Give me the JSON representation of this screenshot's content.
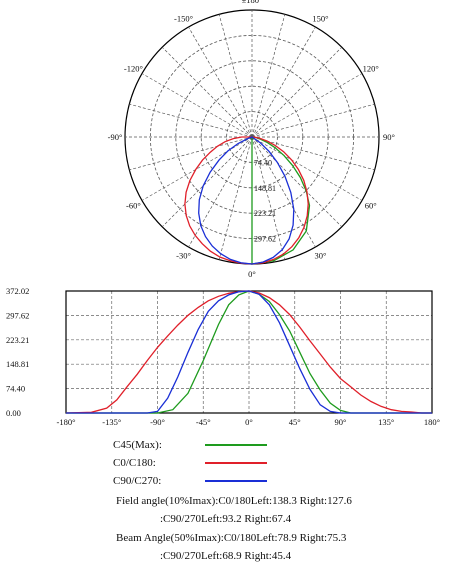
{
  "polar": {
    "angle_labels": [
      {
        "deg": 180,
        "text": "±180°"
      },
      {
        "deg": 150,
        "text": "150°"
      },
      {
        "deg": 120,
        "text": "120°"
      },
      {
        "deg": 90,
        "text": "90°"
      },
      {
        "deg": 60,
        "text": "60°"
      },
      {
        "deg": 30,
        "text": "30°"
      },
      {
        "deg": 0,
        "text": "0°"
      },
      {
        "deg": -30,
        "text": "-30°"
      },
      {
        "deg": -60,
        "text": "-60°"
      },
      {
        "deg": -90,
        "text": "-90°"
      },
      {
        "deg": -120,
        "text": "-120°"
      },
      {
        "deg": -150,
        "text": "-150°"
      }
    ],
    "ring_values": [
      "74.40",
      "148.81",
      "223.21",
      "297.62",
      "372.02"
    ]
  },
  "chart_data": [
    {
      "type": "line",
      "subtype": "polar",
      "r_max": 372.02,
      "r_ticks": [
        74.4,
        148.81,
        223.21,
        297.62,
        372.02
      ],
      "theta_labels_deg": [
        180,
        150,
        120,
        90,
        60,
        30,
        0,
        -30,
        -60,
        -90,
        -120,
        -150
      ],
      "series": [
        {
          "name": "C45(Max):",
          "color": "#1e9b1e",
          "theta": [
            0,
            10,
            20,
            30,
            40,
            45,
            50,
            55,
            60,
            65,
            70,
            75,
            80,
            85,
            90
          ],
          "r": [
            372,
            368,
            352,
            318,
            262,
            225,
            185,
            145,
            108,
            75,
            48,
            28,
            14,
            5,
            0
          ]
        },
        {
          "name": "C0/C180:",
          "color": "#e0202a",
          "theta": [
            -90,
            -85,
            -80,
            -75,
            -70,
            -65,
            -60,
            -55,
            -50,
            -45,
            -40,
            -35,
            -30,
            -25,
            -20,
            -15,
            -10,
            -5,
            0,
            5,
            10,
            15,
            20,
            25,
            30,
            35,
            40,
            45,
            50,
            55,
            60,
            65,
            70,
            75,
            80,
            85,
            90
          ],
          "r": [
            30,
            55,
            80,
            105,
            130,
            160,
            190,
            222,
            252,
            278,
            300,
            318,
            333,
            345,
            356,
            364,
            368,
            371,
            372,
            370,
            364,
            355,
            342,
            325,
            305,
            282,
            256,
            228,
            198,
            166,
            134,
            102,
            72,
            46,
            25,
            10,
            2
          ]
        },
        {
          "name": "C90/C270:",
          "color": "#1a2fd6",
          "theta": [
            -75,
            -70,
            -65,
            -60,
            -55,
            -50,
            -45,
            -40,
            -35,
            -30,
            -25,
            -20,
            -15,
            -10,
            -5,
            0,
            5,
            10,
            15,
            20,
            25,
            30,
            35,
            40,
            45,
            50,
            55,
            60
          ],
          "r": [
            0,
            12,
            45,
            82,
            118,
            160,
            202,
            240,
            272,
            300,
            322,
            340,
            354,
            364,
            370,
            372,
            368,
            358,
            342,
            318,
            285,
            245,
            198,
            150,
            105,
            65,
            30,
            0
          ]
        }
      ]
    },
    {
      "type": "line",
      "xlabel": "",
      "ylabel": "",
      "xlim": [
        -180,
        180
      ],
      "ylim": [
        0,
        372.02
      ],
      "x_ticks": [
        -180,
        -135,
        -90,
        -45,
        0,
        45,
        90,
        135,
        180
      ],
      "x_tick_labels": [
        "-180°",
        "-135°",
        "-90°",
        "-45°",
        "0°",
        "45°",
        "90°",
        "135°",
        "180°"
      ],
      "y_ticks": [
        0,
        74.4,
        148.81,
        223.21,
        297.62,
        372.02
      ],
      "y_tick_labels": [
        "0.00",
        "74.40",
        "148.81",
        "223.21",
        "297.62",
        "372.02"
      ],
      "grid": true,
      "series": [
        {
          "name": "C45(Max):",
          "color": "#1e9b1e",
          "x": [
            -180,
            -90,
            -75,
            -60,
            -45,
            -30,
            -20,
            -10,
            0,
            10,
            20,
            30,
            40,
            50,
            60,
            70,
            80,
            90,
            100,
            110,
            180
          ],
          "y": [
            0,
            0,
            10,
            60,
            160,
            270,
            330,
            360,
            372,
            362,
            340,
            300,
            250,
            185,
            120,
            70,
            30,
            8,
            0,
            0,
            0
          ]
        },
        {
          "name": "C0/C180:",
          "color": "#e0202a",
          "x": [
            -180,
            -155,
            -140,
            -130,
            -120,
            -110,
            -100,
            -90,
            -80,
            -70,
            -60,
            -50,
            -40,
            -30,
            -20,
            -10,
            0,
            10,
            20,
            30,
            40,
            50,
            60,
            70,
            80,
            90,
            100,
            110,
            120,
            130,
            140,
            150,
            160,
            170,
            180
          ],
          "y": [
            0,
            2,
            15,
            40,
            80,
            118,
            160,
            200,
            235,
            268,
            298,
            322,
            342,
            356,
            365,
            370,
            372,
            366,
            352,
            330,
            300,
            262,
            220,
            180,
            140,
            105,
            80,
            55,
            35,
            20,
            10,
            5,
            3,
            0,
            0
          ]
        },
        {
          "name": "C90/C270:",
          "color": "#1a2fd6",
          "x": [
            -180,
            -100,
            -90,
            -80,
            -70,
            -60,
            -50,
            -40,
            -30,
            -20,
            -10,
            0,
            10,
            20,
            30,
            40,
            50,
            60,
            70,
            80,
            90,
            180
          ],
          "y": [
            0,
            0,
            5,
            45,
            110,
            185,
            255,
            310,
            342,
            360,
            370,
            372,
            362,
            330,
            275,
            205,
            135,
            72,
            25,
            5,
            0,
            0
          ]
        }
      ]
    }
  ],
  "legend": [
    {
      "label": "C45(Max):",
      "color": "#1e9b1e"
    },
    {
      "label": "C0/C180:",
      "color": "#e0202a"
    },
    {
      "label": "C90/C270:",
      "color": "#1a2fd6"
    }
  ],
  "notes": {
    "field_angle_line1": "Field angle(10%Imax):C0/180Left:138.3 Right:127.6",
    "field_angle_line2": ":C90/270Left:93.2 Right:67.4",
    "beam_angle_line1": "Beam Angle(50%Imax):C0/180Left:78.9 Right:75.3",
    "beam_angle_line2": ":C90/270Left:68.9 Right:45.4"
  }
}
